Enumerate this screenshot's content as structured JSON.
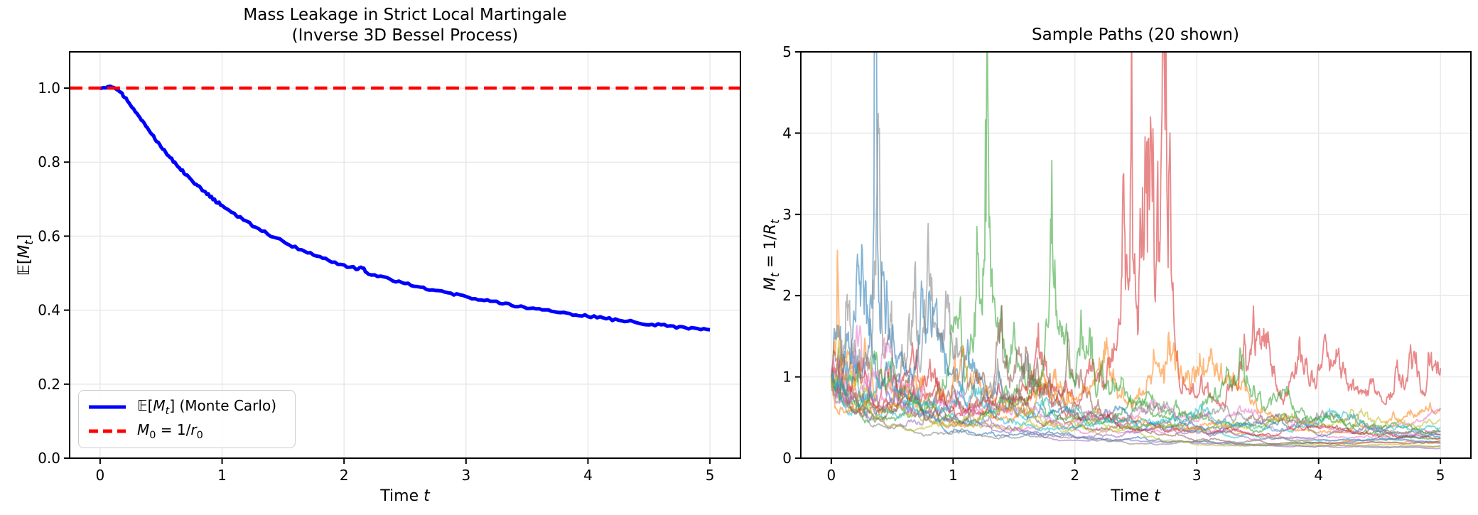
{
  "figure": {
    "background": "#ffffff",
    "grid_color": "#e6e6e6",
    "spine_color": "#000000"
  },
  "chart_data": [
    {
      "type": "line",
      "title": "Mass Leakage in Strict Local Martingale\n(Inverse 3D Bessel Process)",
      "xlabel": "Time *t*",
      "ylabel": "𝔼[*M*_*t*_]",
      "xlim": [
        -0.25,
        5.25
      ],
      "ylim": [
        0,
        1.098
      ],
      "xticks": [
        0,
        1,
        2,
        3,
        4,
        5
      ],
      "xtick_labels": [
        "0",
        "1",
        "2",
        "3",
        "4",
        "5"
      ],
      "yticks": [
        0.0,
        0.2,
        0.4,
        0.6,
        0.8,
        1.0
      ],
      "ytick_labels": [
        "0.0",
        "0.2",
        "0.4",
        "0.6",
        "0.8",
        "1.0"
      ],
      "grid": true,
      "legend_location": "lower left",
      "series": [
        {
          "label": "𝔼[*M*_*t*_] (Monte Carlo)",
          "color": "#0000ff",
          "width": 5,
          "x": [
            0,
            0.04,
            0.08,
            0.12,
            0.16,
            0.2,
            0.25,
            0.3,
            0.35,
            0.4,
            0.45,
            0.5,
            0.55,
            0.6,
            0.65,
            0.7,
            0.75,
            0.8,
            0.85,
            0.9,
            0.95,
            1.0,
            1.1,
            1.2,
            1.3,
            1.4,
            1.5,
            1.6,
            1.7,
            1.8,
            1.9,
            2.0,
            2.1,
            2.15,
            2.2,
            2.3,
            2.4,
            2.5,
            2.6,
            2.7,
            2.8,
            2.9,
            3.0,
            3.1,
            3.2,
            3.3,
            3.4,
            3.5,
            3.6,
            3.7,
            3.8,
            3.9,
            4.0,
            4.1,
            4.2,
            4.3,
            4.4,
            4.5,
            4.6,
            4.7,
            4.8,
            4.9,
            5.0
          ],
          "y": [
            1.0,
            1.001,
            1.005,
            1.0,
            0.99,
            0.976,
            0.955,
            0.934,
            0.91,
            0.887,
            0.864,
            0.843,
            0.822,
            0.803,
            0.785,
            0.769,
            0.752,
            0.736,
            0.721,
            0.708,
            0.694,
            0.683,
            0.66,
            0.638,
            0.62,
            0.602,
            0.586,
            0.57,
            0.557,
            0.544,
            0.532,
            0.521,
            0.512,
            0.514,
            0.5,
            0.491,
            0.482,
            0.473,
            0.465,
            0.457,
            0.45,
            0.443,
            0.437,
            0.43,
            0.424,
            0.418,
            0.413,
            0.407,
            0.402,
            0.397,
            0.392,
            0.388,
            0.384,
            0.379,
            0.375,
            0.371,
            0.367,
            0.363,
            0.36,
            0.356,
            0.353,
            0.349,
            0.347
          ],
          "noise": {
            "seed": 12,
            "amplitude": 0.0035,
            "subdivisions": 4
          }
        },
        {
          "label": "*M*_0_ = 1/*r*_0_",
          "color": "#ff0000",
          "width": 4.5,
          "dash": [
            18,
            8.5
          ],
          "axhline": 1.0
        }
      ]
    },
    {
      "type": "line",
      "title": "Sample Paths (20 shown)",
      "xlabel": "Time *t*",
      "ylabel": "*M*_*t*_ = 1/*R*_*t*_",
      "xlim": [
        -0.25,
        5.25
      ],
      "ylim": [
        0,
        5
      ],
      "xticks": [
        0,
        1,
        2,
        3,
        4,
        5
      ],
      "xtick_labels": [
        "0",
        "1",
        "2",
        "3",
        "4",
        "5"
      ],
      "yticks": [
        0,
        1,
        2,
        3,
        4,
        5
      ],
      "ytick_labels": [
        "0",
        "1",
        "2",
        "3",
        "4",
        "5"
      ],
      "grid": true,
      "paths": {
        "count": 20,
        "model": "inverse-3d-bessel",
        "r0": 1,
        "t_max": 5,
        "steps": 1000,
        "line_width": 1.8,
        "alpha": 0.55,
        "seeds": [
          11,
          42,
          7,
          101,
          23,
          5,
          77,
          13,
          58,
          91,
          3,
          66,
          29,
          84,
          17,
          49,
          8,
          37,
          72,
          20
        ],
        "colors": [
          "#1f77b4",
          "#ff7f0e",
          "#2ca02c",
          "#d62728",
          "#9467bd",
          "#8c564b",
          "#e377c2",
          "#7f7f7f",
          "#bcbd22",
          "#17becf",
          "#1f77b4",
          "#ff7f0e",
          "#2ca02c",
          "#d62728",
          "#9467bd",
          "#8c564b",
          "#e377c2",
          "#7f7f7f",
          "#bcbd22",
          "#17becf"
        ]
      }
    }
  ]
}
